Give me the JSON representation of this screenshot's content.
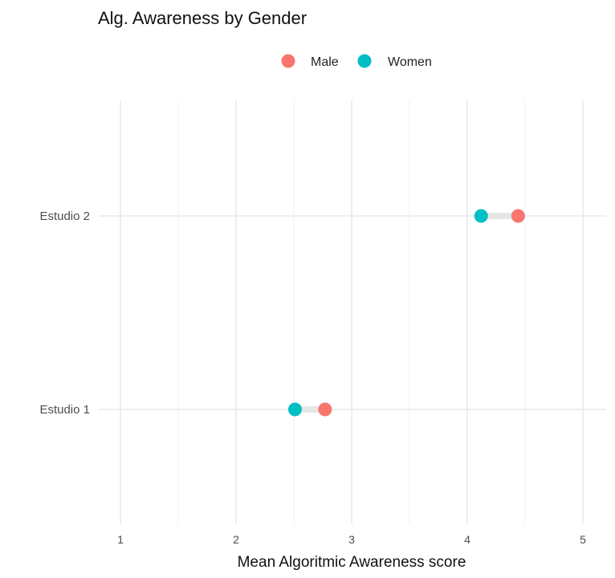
{
  "chart_data": {
    "type": "dumbbell",
    "title": "Alg. Awareness by Gender",
    "xlabel": "Mean Algoritmic Awareness score",
    "ylabel": "",
    "xlim": [
      0.85,
      5.2
    ],
    "x_ticks": [
      1,
      2,
      3,
      4,
      5
    ],
    "x_minor_ticks": [
      1.5,
      2.5,
      3.5,
      4.5
    ],
    "categories": [
      "Estudio 1",
      "Estudio 2"
    ],
    "series": [
      {
        "name": "Male",
        "color": "#F8766D",
        "values": [
          2.77,
          4.44
        ]
      },
      {
        "name": "Women",
        "color": "#00BFC4",
        "values": [
          2.51,
          4.12
        ]
      }
    ],
    "legend_position": "top",
    "grid": true,
    "segment_color": "#e6e6e6"
  }
}
